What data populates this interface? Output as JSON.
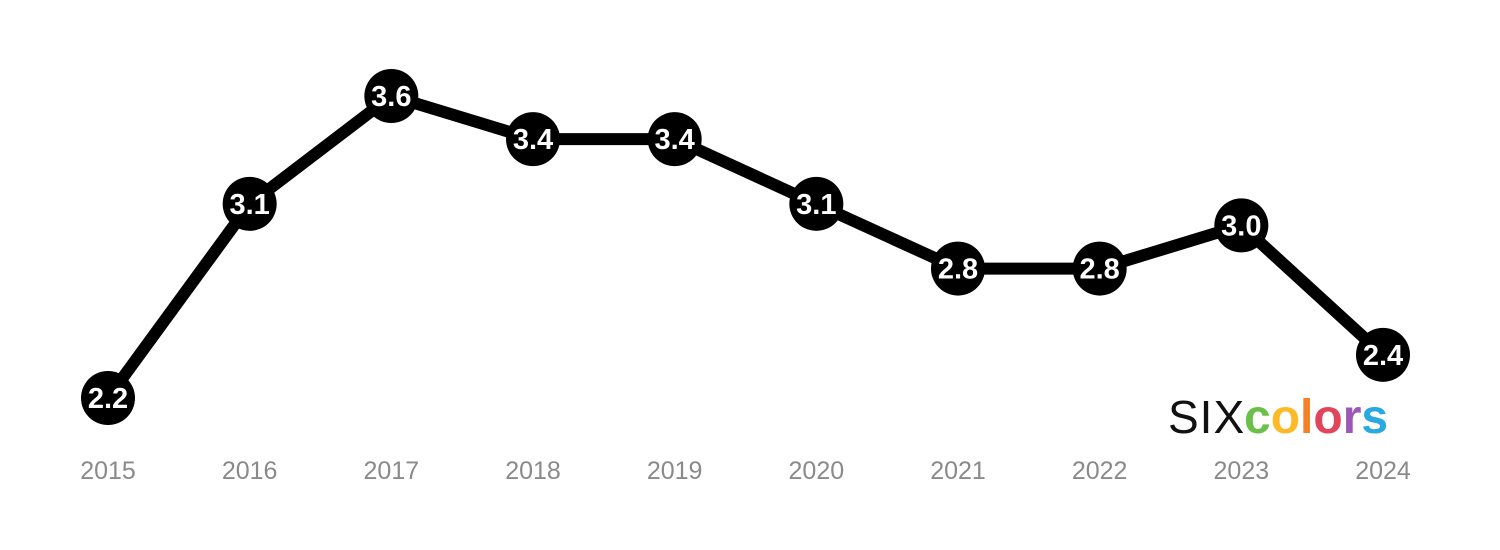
{
  "chart_data": {
    "type": "line",
    "x": [
      "2015",
      "2016",
      "2017",
      "2018",
      "2019",
      "2020",
      "2021",
      "2022",
      "2023",
      "2024"
    ],
    "series": [
      {
        "values": [
          2.2,
          3.1,
          3.6,
          3.4,
          3.4,
          3.1,
          2.8,
          2.8,
          3.0,
          2.4
        ],
        "labels": [
          "2.2",
          "3.1",
          "3.6",
          "3.4",
          "3.4",
          "3.1",
          "2.8",
          "2.8",
          "3.0",
          "2.4"
        ],
        "color": "#000000"
      }
    ],
    "title": "",
    "xlabel": "",
    "ylabel": "",
    "ylim": [
      2.2,
      3.6
    ],
    "grid": false,
    "legend": "none"
  },
  "logo": {
    "prefix": "SIX",
    "letters": [
      "c",
      "o",
      "l",
      "o",
      "r",
      "s"
    ],
    "colors": [
      "#6cc04a",
      "#fdb927",
      "#f58025",
      "#e2445c",
      "#9b59b6",
      "#2aa9e0"
    ]
  },
  "colors": {
    "line": "#000000",
    "marker": "#000000",
    "marker_text": "#ffffff",
    "tick_text": "#8a8a8a"
  }
}
